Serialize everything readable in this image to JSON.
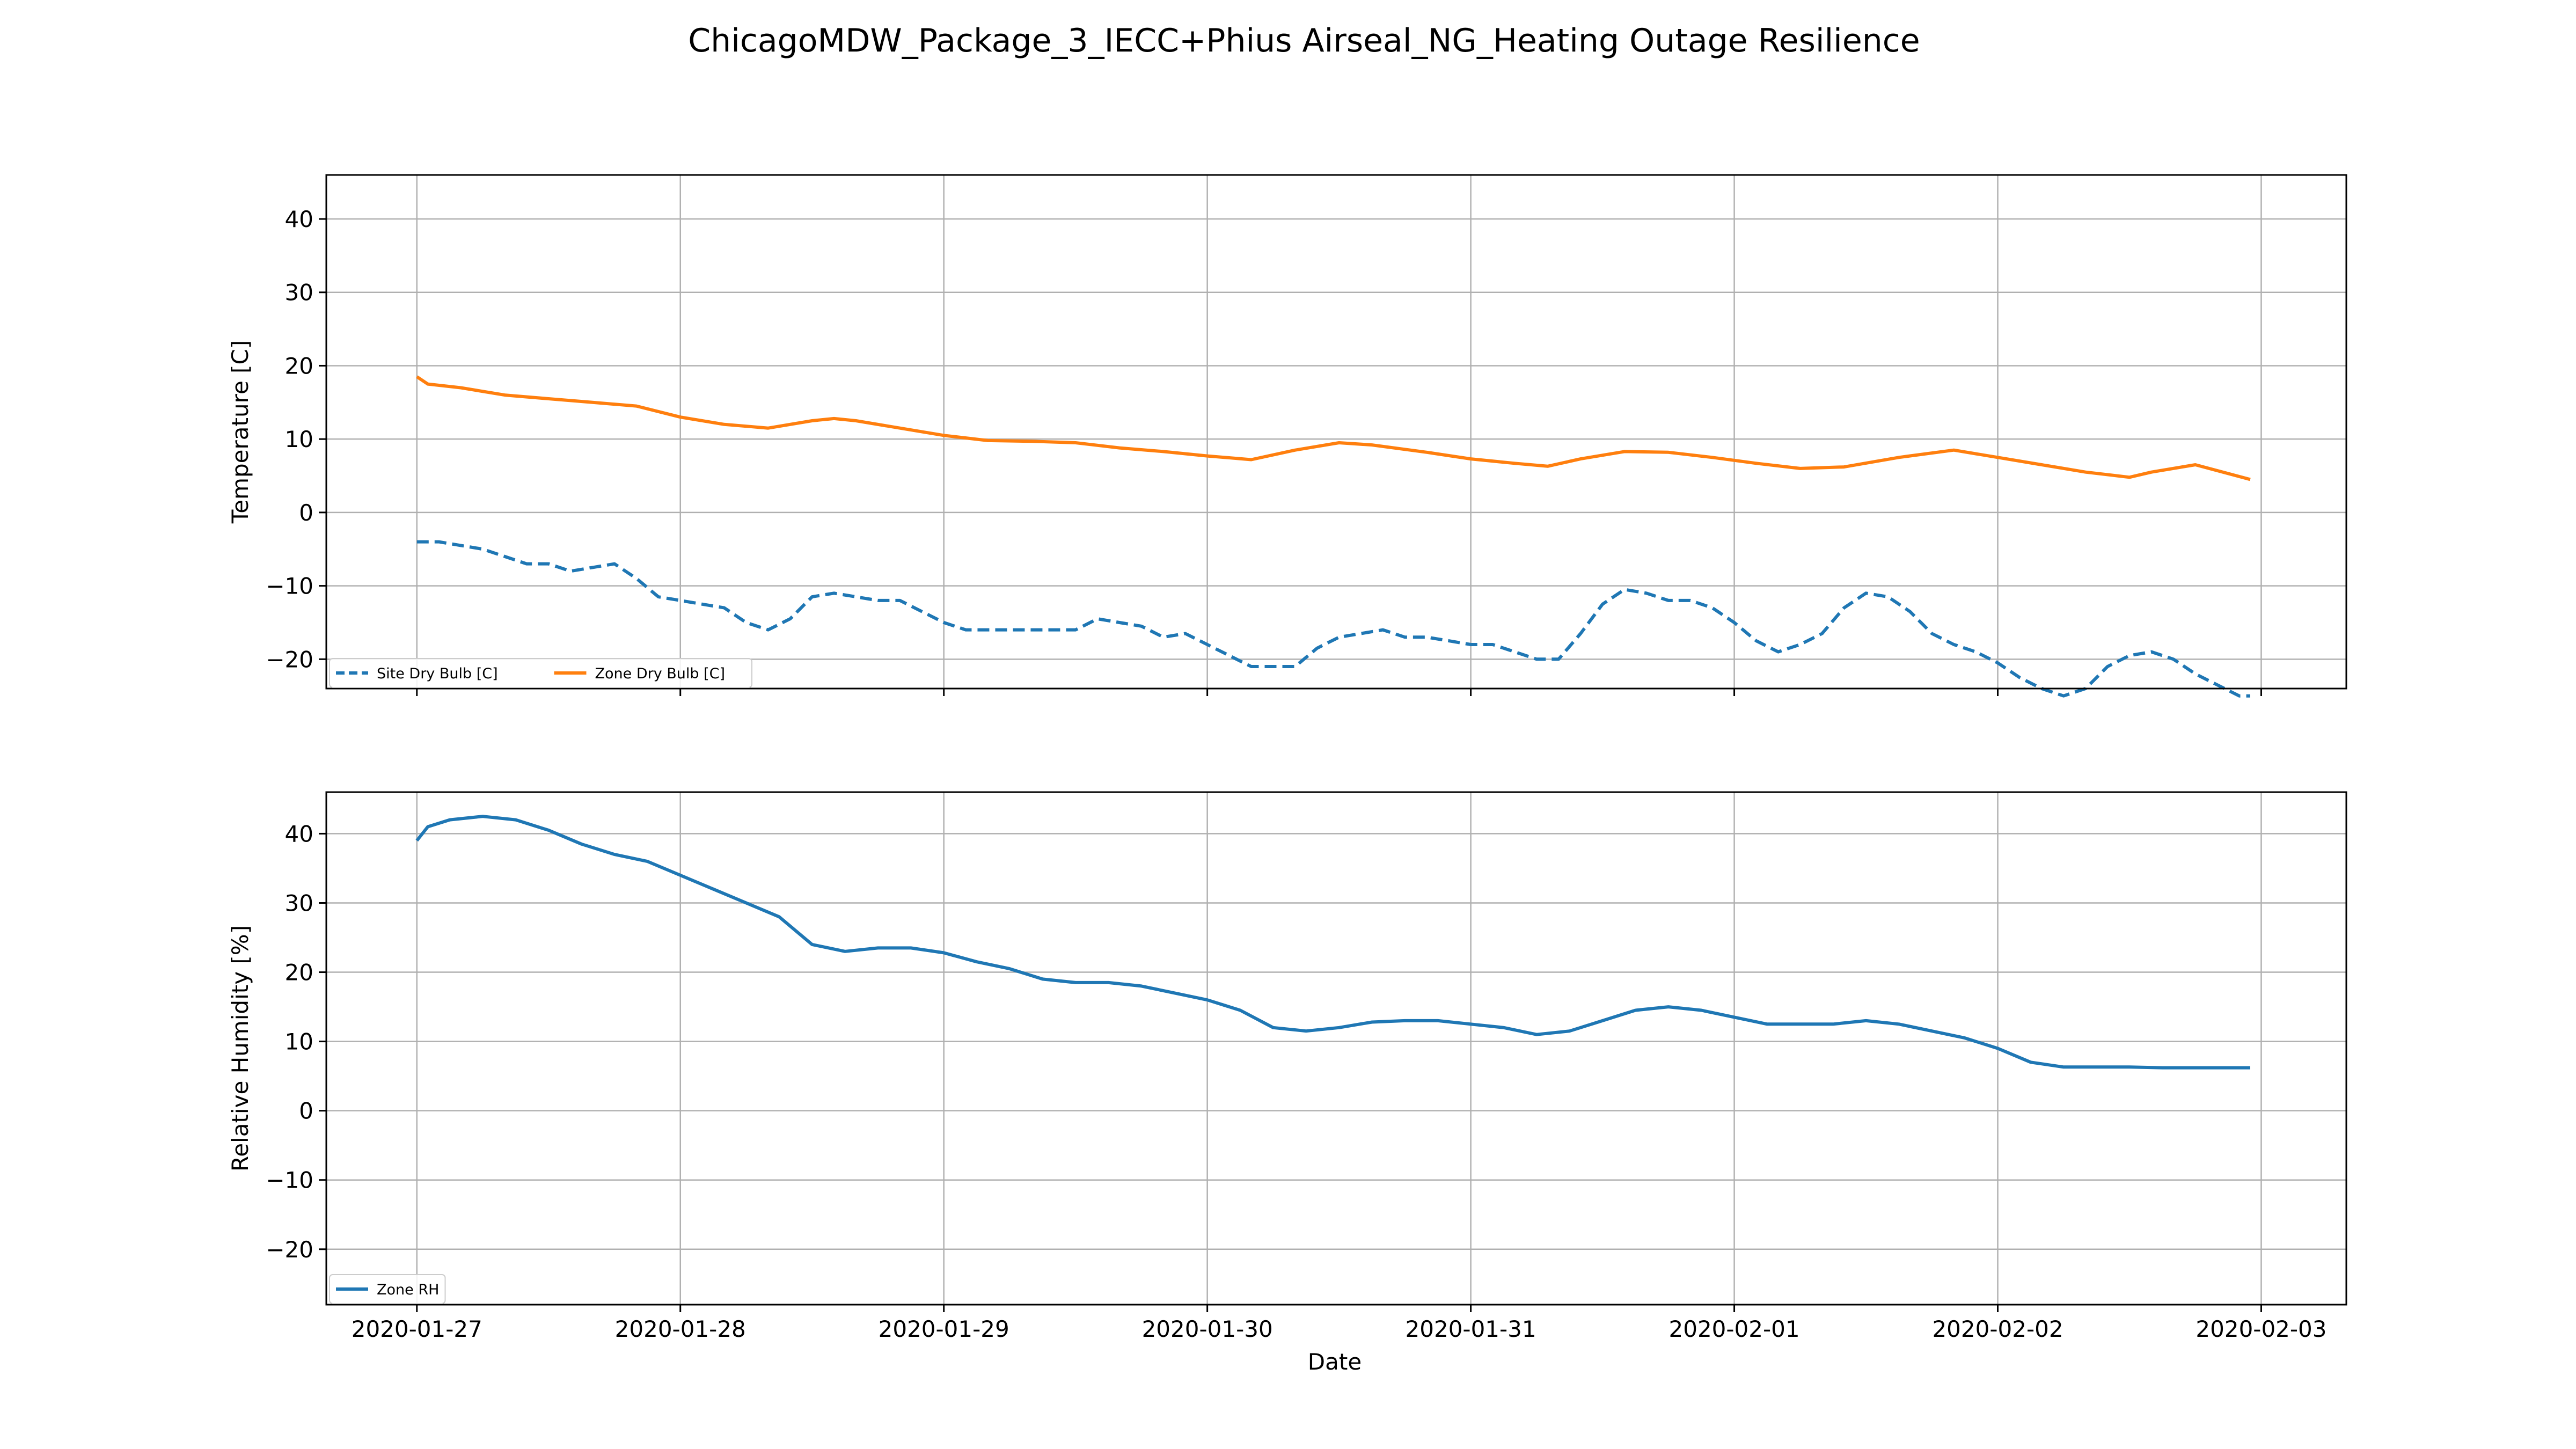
{
  "chart_data": {
    "title": "ChicagoMDW_Package_3_IECC+Phius Airseal_NG_Heating Outage Resilience",
    "xlabel": "Date",
    "x_ticks": [
      "2020-01-27",
      "2020-01-28",
      "2020-01-29",
      "2020-01-30",
      "2020-01-31",
      "2020-02-01",
      "2020-02-02",
      "2020-02-03"
    ],
    "x_range": [
      "2020-01-26T15:45",
      "2020-02-03T07:45"
    ],
    "grid": true,
    "panels": [
      {
        "type": "line",
        "ylabel": "Temperature [C]",
        "ylim": [
          -24,
          46
        ],
        "yticks": [
          -20,
          -10,
          0,
          10,
          20,
          30,
          40
        ],
        "y_tick_labels": [
          "−20",
          "−10",
          "0",
          "10",
          "20",
          "30",
          "40"
        ],
        "legend_position": "lower-left",
        "legend_columns": 2,
        "series": [
          {
            "name": "Site Dry Bulb [C]",
            "color": "#1f77b4",
            "style": "dashed",
            "x": [
              "2020-01-27T00:00",
              "2020-01-27T02:00",
              "2020-01-27T04:00",
              "2020-01-27T06:00",
              "2020-01-27T08:00",
              "2020-01-27T10:00",
              "2020-01-27T12:00",
              "2020-01-27T14:00",
              "2020-01-27T16:00",
              "2020-01-27T18:00",
              "2020-01-27T20:00",
              "2020-01-27T22:00",
              "2020-01-28T00:00",
              "2020-01-28T02:00",
              "2020-01-28T04:00",
              "2020-01-28T06:00",
              "2020-01-28T08:00",
              "2020-01-28T10:00",
              "2020-01-28T12:00",
              "2020-01-28T14:00",
              "2020-01-28T16:00",
              "2020-01-28T18:00",
              "2020-01-28T20:00",
              "2020-01-28T22:00",
              "2020-01-29T00:00",
              "2020-01-29T02:00",
              "2020-01-29T04:00",
              "2020-01-29T06:00",
              "2020-01-29T08:00",
              "2020-01-29T10:00",
              "2020-01-29T12:00",
              "2020-01-29T14:00",
              "2020-01-29T16:00",
              "2020-01-29T18:00",
              "2020-01-29T20:00",
              "2020-01-29T22:00",
              "2020-01-30T00:00",
              "2020-01-30T02:00",
              "2020-01-30T04:00",
              "2020-01-30T06:00",
              "2020-01-30T08:00",
              "2020-01-30T10:00",
              "2020-01-30T12:00",
              "2020-01-30T14:00",
              "2020-01-30T16:00",
              "2020-01-30T18:00",
              "2020-01-30T20:00",
              "2020-01-30T22:00",
              "2020-01-31T00:00",
              "2020-01-31T02:00",
              "2020-01-31T04:00",
              "2020-01-31T06:00",
              "2020-01-31T08:00",
              "2020-01-31T10:00",
              "2020-01-31T12:00",
              "2020-01-31T14:00",
              "2020-01-31T16:00",
              "2020-01-31T18:00",
              "2020-01-31T20:00",
              "2020-01-31T22:00",
              "2020-02-01T00:00",
              "2020-02-01T02:00",
              "2020-02-01T04:00",
              "2020-02-01T06:00",
              "2020-02-01T08:00",
              "2020-02-01T10:00",
              "2020-02-01T12:00",
              "2020-02-01T14:00",
              "2020-02-01T16:00",
              "2020-02-01T18:00",
              "2020-02-01T20:00",
              "2020-02-01T22:00",
              "2020-02-02T00:00",
              "2020-02-02T02:00",
              "2020-02-02T04:00",
              "2020-02-02T06:00",
              "2020-02-02T08:00",
              "2020-02-02T10:00",
              "2020-02-02T12:00",
              "2020-02-02T14:00",
              "2020-02-02T16:00",
              "2020-02-02T18:00",
              "2020-02-02T20:00",
              "2020-02-02T22:00",
              "2020-02-02T23:00"
            ],
            "y": [
              -4,
              -4,
              -4.5,
              -5,
              -6,
              -7,
              -7,
              -8,
              -7.5,
              -7,
              -9,
              -11.5,
              -12,
              -12.5,
              -13,
              -15,
              -16,
              -14.5,
              -11.5,
              -11,
              -11.5,
              -12,
              -12,
              -13.5,
              -15,
              -16,
              -16,
              -16,
              -16,
              -16,
              -16,
              -14.5,
              -15,
              -15.5,
              -17,
              -16.5,
              -18,
              -19.5,
              -21,
              -21,
              -21,
              -18.5,
              -17,
              -16.5,
              -16,
              -17,
              -17,
              -17.5,
              -18,
              -18,
              -19,
              -20,
              -20,
              -16.5,
              -12.5,
              -10.5,
              -11,
              -12,
              -12,
              -13,
              -15,
              -17.5,
              -19,
              -18,
              -16.5,
              -13,
              -11,
              -11.5,
              -13.5,
              -16.5,
              -18,
              -19,
              -20.5,
              -22.5,
              -24,
              -25,
              -24,
              -21,
              -19.5,
              -19,
              -20,
              -22,
              -23.5,
              -25,
              -25
            ]
          },
          {
            "name": "Zone Dry Bulb [C]",
            "color": "#ff7f0e",
            "style": "solid",
            "x": [
              "2020-01-27T00:00",
              "2020-01-27T01:00",
              "2020-01-27T04:00",
              "2020-01-27T08:00",
              "2020-01-27T12:00",
              "2020-01-27T16:00",
              "2020-01-27T20:00",
              "2020-01-28T00:00",
              "2020-01-28T04:00",
              "2020-01-28T08:00",
              "2020-01-28T12:00",
              "2020-01-28T14:00",
              "2020-01-28T16:00",
              "2020-01-28T20:00",
              "2020-01-29T00:00",
              "2020-01-29T04:00",
              "2020-01-29T08:00",
              "2020-01-29T12:00",
              "2020-01-29T16:00",
              "2020-01-29T20:00",
              "2020-01-30T00:00",
              "2020-01-30T04:00",
              "2020-01-30T08:00",
              "2020-01-30T12:00",
              "2020-01-30T15:00",
              "2020-01-30T20:00",
              "2020-01-31T00:00",
              "2020-01-31T04:00",
              "2020-01-31T07:00",
              "2020-01-31T10:00",
              "2020-01-31T14:00",
              "2020-01-31T18:00",
              "2020-01-31T22:00",
              "2020-02-01T02:00",
              "2020-02-01T06:00",
              "2020-02-01T10:00",
              "2020-02-01T15:00",
              "2020-02-01T20:00",
              "2020-02-02T00:00",
              "2020-02-02T04:00",
              "2020-02-02T08:00",
              "2020-02-02T12:00",
              "2020-02-02T14:00",
              "2020-02-02T18:00",
              "2020-02-02T23:00"
            ],
            "y": [
              18.5,
              17.5,
              17,
              16,
              15.5,
              15,
              14.5,
              13,
              12,
              11.5,
              12.5,
              12.8,
              12.5,
              11.5,
              10.5,
              9.8,
              9.7,
              9.5,
              8.8,
              8.3,
              7.7,
              7.2,
              8.5,
              9.5,
              9.2,
              8.2,
              7.3,
              6.7,
              6.3,
              7.3,
              8.3,
              8.2,
              7.5,
              6.7,
              6,
              6.2,
              7.5,
              8.5,
              7.5,
              6.5,
              5.5,
              4.8,
              5.5,
              6.5,
              4.5
            ]
          }
        ]
      },
      {
        "type": "line",
        "ylabel": "Relative Humidity [%]",
        "ylim": [
          -28,
          46
        ],
        "yticks": [
          -20,
          -10,
          0,
          10,
          20,
          30,
          40
        ],
        "y_tick_labels": [
          "−20",
          "−10",
          "0",
          "10",
          "20",
          "30",
          "40"
        ],
        "legend_position": "lower-left",
        "legend_columns": 1,
        "series": [
          {
            "name": "Zone RH",
            "color": "#1f77b4",
            "style": "solid",
            "x": [
              "2020-01-27T00:00",
              "2020-01-27T01:00",
              "2020-01-27T03:00",
              "2020-01-27T06:00",
              "2020-01-27T09:00",
              "2020-01-27T12:00",
              "2020-01-27T15:00",
              "2020-01-27T18:00",
              "2020-01-27T21:00",
              "2020-01-28T00:00",
              "2020-01-28T03:00",
              "2020-01-28T06:00",
              "2020-01-28T09:00",
              "2020-01-28T12:00",
              "2020-01-28T15:00",
              "2020-01-28T18:00",
              "2020-01-28T21:00",
              "2020-01-29T00:00",
              "2020-01-29T03:00",
              "2020-01-29T06:00",
              "2020-01-29T09:00",
              "2020-01-29T12:00",
              "2020-01-29T15:00",
              "2020-01-29T18:00",
              "2020-01-29T21:00",
              "2020-01-30T00:00",
              "2020-01-30T03:00",
              "2020-01-30T06:00",
              "2020-01-30T09:00",
              "2020-01-30T12:00",
              "2020-01-30T15:00",
              "2020-01-30T18:00",
              "2020-01-30T21:00",
              "2020-01-31T00:00",
              "2020-01-31T03:00",
              "2020-01-31T06:00",
              "2020-01-31T09:00",
              "2020-01-31T12:00",
              "2020-01-31T15:00",
              "2020-01-31T18:00",
              "2020-01-31T21:00",
              "2020-02-01T00:00",
              "2020-02-01T03:00",
              "2020-02-01T06:00",
              "2020-02-01T09:00",
              "2020-02-01T12:00",
              "2020-02-01T15:00",
              "2020-02-01T18:00",
              "2020-02-01T21:00",
              "2020-02-02T00:00",
              "2020-02-02T03:00",
              "2020-02-02T06:00",
              "2020-02-02T09:00",
              "2020-02-02T12:00",
              "2020-02-02T15:00",
              "2020-02-02T18:00",
              "2020-02-02T21:00",
              "2020-02-02T23:00"
            ],
            "y": [
              39,
              41,
              42,
              42.5,
              42,
              40.5,
              38.5,
              37,
              36,
              34,
              32,
              30,
              28,
              24,
              23,
              23.5,
              23.5,
              22.8,
              21.5,
              20.5,
              19,
              18.5,
              18.5,
              18,
              17,
              16,
              14.5,
              12,
              11.5,
              12,
              12.8,
              13,
              13,
              12.5,
              12,
              11,
              11.5,
              13,
              14.5,
              15,
              14.5,
              13.5,
              12.5,
              12.5,
              12.5,
              13,
              12.5,
              11.5,
              10.5,
              9,
              7,
              6.3,
              6.3,
              6.3,
              6.2,
              6.2,
              6.2,
              6.2
            ]
          }
        ]
      }
    ]
  }
}
